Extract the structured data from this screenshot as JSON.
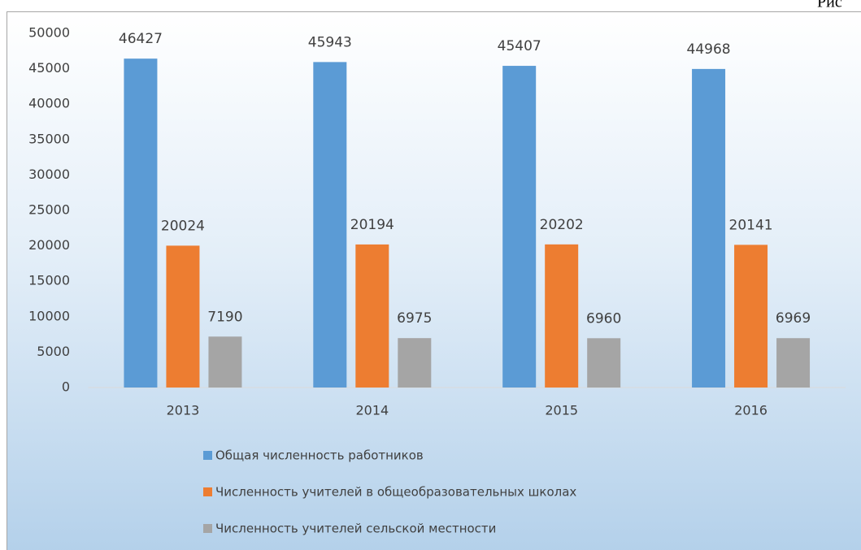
{
  "caption": "Рис",
  "chart_data": {
    "type": "bar",
    "categories": [
      "2013",
      "2014",
      "2015",
      "2016"
    ],
    "series": [
      {
        "name": "Общая численность работников",
        "color": "#5b9bd5",
        "values": [
          46427,
          45943,
          45407,
          44968
        ]
      },
      {
        "name": "Численность учителей в общеобразовательных школах",
        "color": "#ed7d31",
        "values": [
          20024,
          20194,
          20202,
          20141
        ]
      },
      {
        "name": "Численность учителей сельской местности",
        "color": "#a5a5a5",
        "values": [
          7190,
          6975,
          6960,
          6969
        ]
      }
    ],
    "ylim": [
      0,
      50000
    ],
    "yticks": [
      0,
      5000,
      10000,
      15000,
      20000,
      25000,
      30000,
      35000,
      40000,
      45000,
      50000
    ],
    "legend": "bottom",
    "grid": false
  }
}
